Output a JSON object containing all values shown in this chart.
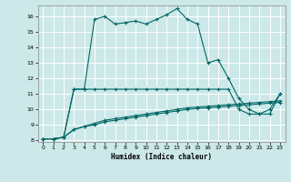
{
  "background_color": "#cce8e8",
  "grid_color": "#ffffff",
  "line_color": "#006666",
  "xlim": [
    -0.5,
    23.5
  ],
  "ylim": [
    7.9,
    16.7
  ],
  "yticks": [
    8,
    9,
    10,
    11,
    12,
    13,
    14,
    15,
    16
  ],
  "xticks": [
    0,
    1,
    2,
    3,
    4,
    5,
    6,
    7,
    8,
    9,
    10,
    11,
    12,
    13,
    14,
    15,
    16,
    17,
    18,
    19,
    20,
    21,
    22,
    23
  ],
  "xlabel": "Humidex (Indice chaleur)",
  "line_main_x": [
    0,
    1,
    2,
    3,
    4,
    5,
    6,
    7,
    8,
    9,
    10,
    11,
    12,
    13,
    14,
    15,
    16,
    17,
    18,
    19,
    20,
    21,
    22,
    23
  ],
  "line_main_y": [
    8.1,
    8.1,
    8.2,
    11.3,
    11.3,
    15.8,
    16.0,
    15.5,
    15.6,
    15.7,
    15.5,
    15.8,
    16.1,
    16.5,
    15.8,
    15.5,
    13.0,
    13.2,
    12.0,
    10.7,
    10.0,
    9.7,
    9.7,
    11.0
  ],
  "line_flat_x": [
    0,
    1,
    2,
    3,
    4,
    5,
    6,
    7,
    8,
    9,
    10,
    11,
    12,
    13,
    14,
    15,
    16,
    17,
    18,
    19,
    20,
    21,
    22,
    23
  ],
  "line_flat_y": [
    8.1,
    8.1,
    8.2,
    11.3,
    11.3,
    11.3,
    11.3,
    11.3,
    11.3,
    11.3,
    11.3,
    11.3,
    11.3,
    11.3,
    11.3,
    11.3,
    11.3,
    11.3,
    11.3,
    10.0,
    9.7,
    9.7,
    10.0,
    11.0
  ],
  "line_slow1_x": [
    0,
    1,
    2,
    3,
    4,
    5,
    6,
    7,
    8,
    9,
    10,
    11,
    12,
    13,
    14,
    15,
    16,
    17,
    18,
    19,
    20,
    21,
    22,
    23
  ],
  "line_slow1_y": [
    8.1,
    8.1,
    8.2,
    8.7,
    8.9,
    9.0,
    9.2,
    9.3,
    9.4,
    9.5,
    9.6,
    9.7,
    9.8,
    9.9,
    10.0,
    10.05,
    10.1,
    10.15,
    10.2,
    10.25,
    10.3,
    10.35,
    10.4,
    10.45
  ],
  "line_slow2_x": [
    0,
    1,
    2,
    3,
    4,
    5,
    6,
    7,
    8,
    9,
    10,
    11,
    12,
    13,
    14,
    15,
    16,
    17,
    18,
    19,
    20,
    21,
    22,
    23
  ],
  "line_slow2_y": [
    8.1,
    8.1,
    8.2,
    8.7,
    8.9,
    9.1,
    9.3,
    9.4,
    9.5,
    9.6,
    9.7,
    9.8,
    9.9,
    10.0,
    10.1,
    10.15,
    10.2,
    10.25,
    10.3,
    10.35,
    10.4,
    10.45,
    10.5,
    10.55
  ]
}
